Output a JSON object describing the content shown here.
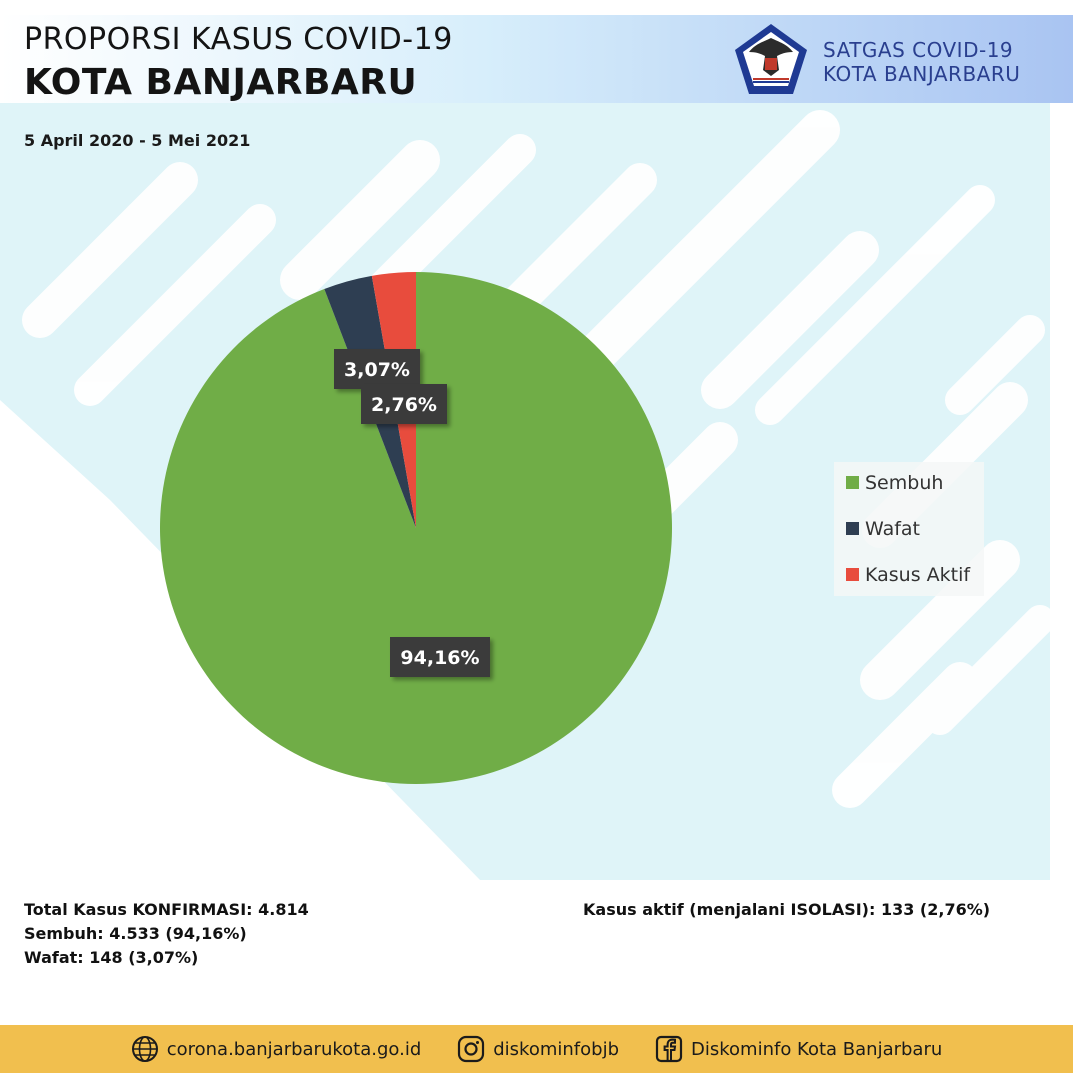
{
  "header": {
    "title_line1": "PROPORSI KASUS COVID-19",
    "title_line2": "KOTA BANJARBARU",
    "date_range": "5 April 2020 - 5 Mei 2021",
    "org_line1": "SATGAS COVID-19",
    "org_line2": "KOTA BANJARBARU",
    "logo_icon": "garuda-emblem-icon"
  },
  "chart_data": {
    "type": "pie",
    "categories": [
      "Sembuh",
      "Wafat",
      "Kasus Aktif"
    ],
    "values": [
      94.16,
      3.07,
      2.76
    ],
    "labels": [
      "94,16%",
      "3,07%",
      "2,76%"
    ],
    "colors": [
      "#70ad47",
      "#2e3e52",
      "#e84c3d"
    ],
    "legend_position": "right",
    "title": ""
  },
  "stats": {
    "total": "Total Kasus KONFIRMASI: 4.814",
    "sembuh": "Sembuh: 4.533 (94,16%)",
    "wafat": "Wafat: 148 (3,07%)",
    "aktif": "Kasus aktif (menjalani ISOLASI): 133 (2,76%)"
  },
  "footer": {
    "website": "corona.banjarbarukota.go.id",
    "instagram": "diskominfobjb",
    "facebook": "Diskominfo Kota Banjarbaru",
    "icons": [
      "globe-icon",
      "instagram-icon",
      "facebook-icon"
    ]
  }
}
